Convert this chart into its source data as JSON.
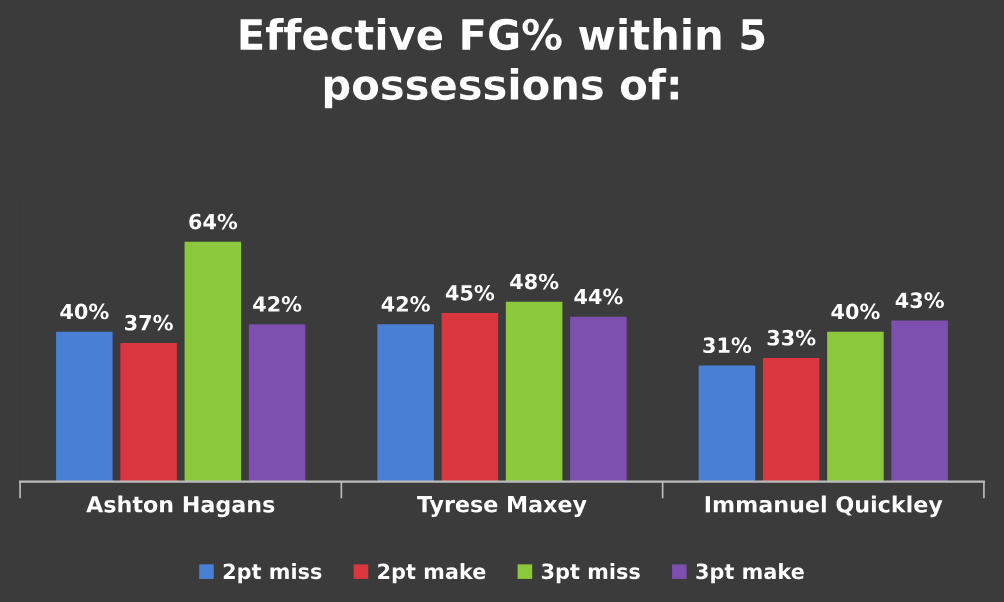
{
  "chart_data": {
    "type": "bar",
    "title": "Effective FG% within 5\npossessions of:",
    "categories": [
      "Ashton Hagans",
      "Tyrese Maxey",
      "Immanuel Quickley"
    ],
    "series": [
      {
        "name": "2pt miss",
        "color": "#4a7fd6",
        "values": [
          40,
          42,
          31
        ],
        "value_labels": [
          "40%",
          "42%",
          "31%"
        ]
      },
      {
        "name": "2pt make",
        "color": "#d9363e",
        "values": [
          37,
          45,
          33
        ],
        "value_labels": [
          "37%",
          "45%",
          "33%"
        ]
      },
      {
        "name": "3pt miss",
        "color": "#8cc83c",
        "values": [
          64,
          48,
          40
        ],
        "value_labels": [
          "64%",
          "48%",
          "40%"
        ]
      },
      {
        "name": "3pt make",
        "color": "#7d4fae",
        "values": [
          42,
          44,
          43
        ],
        "value_labels": [
          "42%",
          "44%",
          "43%"
        ]
      }
    ],
    "legend": "bottom",
    "grid": false,
    "tick_labels": "x"
  }
}
